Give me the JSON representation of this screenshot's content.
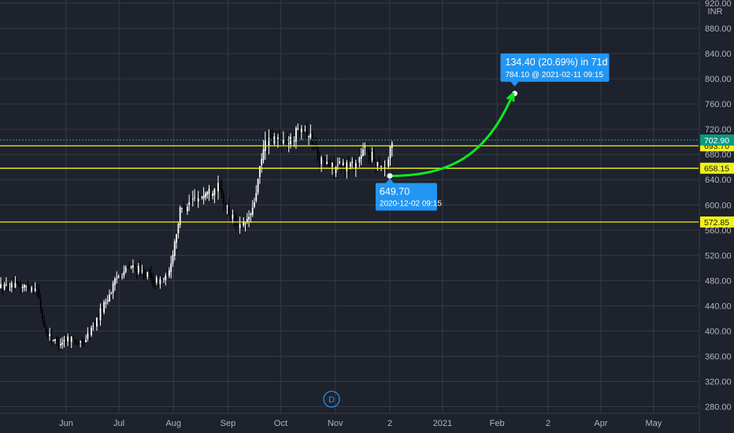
{
  "chart_data": {
    "type": "candlestick",
    "currency": "INR",
    "last_price_label": "702.90",
    "y_ticks": [
      920,
      880,
      840,
      800,
      760,
      720,
      680,
      640,
      600,
      560,
      520,
      480,
      440,
      400,
      360,
      320,
      280
    ],
    "y_tick_labels": [
      "920.00",
      "880.00",
      "840.00",
      "800.00",
      "760.00",
      "720.00",
      "680.00",
      "640.00",
      "600.00",
      "560.00",
      "520.00",
      "480.00",
      "440.00",
      "400.00",
      "360.00",
      "320.00",
      "280.00"
    ],
    "x_ticks": [
      {
        "label": "Jun",
        "date": "2020-06-01"
      },
      {
        "label": "Jul",
        "date": "2020-07-01"
      },
      {
        "label": "Aug",
        "date": "2020-08-01"
      },
      {
        "label": "Sep",
        "date": "2020-09-01"
      },
      {
        "label": "Oct",
        "date": "2020-10-01"
      },
      {
        "label": "Nov",
        "date": "2020-11-01"
      },
      {
        "label": "2",
        "date": "2020-12-02"
      },
      {
        "label": "2021",
        "date": "2021-01-01"
      },
      {
        "label": "Feb",
        "date": "2021-02-01"
      },
      {
        "label": "2",
        "date": "2021-03-02"
      },
      {
        "label": "Apr",
        "date": "2021-04-01"
      },
      {
        "label": "May",
        "date": "2021-05-01"
      }
    ],
    "horizontal_levels": [
      {
        "value": 693.7,
        "label": "693.70"
      },
      {
        "value": 658.15,
        "label": "658.15"
      },
      {
        "value": 572.85,
        "label": "572.85"
      }
    ],
    "price_path": [
      {
        "date": "2020-05-15",
        "close": 470
      },
      {
        "date": "2020-05-20",
        "close": 400
      },
      {
        "date": "2020-05-27",
        "close": 380
      },
      {
        "date": "2020-06-03",
        "close": 390
      },
      {
        "date": "2020-06-10",
        "close": 378
      },
      {
        "date": "2020-06-17",
        "close": 410
      },
      {
        "date": "2020-06-24",
        "close": 450
      },
      {
        "date": "2020-07-01",
        "close": 490
      },
      {
        "date": "2020-07-08",
        "close": 502
      },
      {
        "date": "2020-07-15",
        "close": 492
      },
      {
        "date": "2020-07-22",
        "close": 478
      },
      {
        "date": "2020-07-29",
        "close": 485
      },
      {
        "date": "2020-08-05",
        "close": 592
      },
      {
        "date": "2020-08-12",
        "close": 608
      },
      {
        "date": "2020-08-19",
        "close": 618
      },
      {
        "date": "2020-08-26",
        "close": 630
      },
      {
        "date": "2020-09-02",
        "close": 585
      },
      {
        "date": "2020-09-09",
        "close": 562
      },
      {
        "date": "2020-09-15",
        "close": 590
      },
      {
        "date": "2020-09-22",
        "close": 700
      },
      {
        "date": "2020-09-29",
        "close": 705
      },
      {
        "date": "2020-10-06",
        "close": 698
      },
      {
        "date": "2020-10-13",
        "close": 730
      },
      {
        "date": "2020-10-19",
        "close": 702
      },
      {
        "date": "2020-10-23",
        "close": 672
      },
      {
        "date": "2020-10-30",
        "close": 660
      },
      {
        "date": "2020-11-06",
        "close": 662
      },
      {
        "date": "2020-11-13",
        "close": 665
      },
      {
        "date": "2020-11-18",
        "close": 690
      },
      {
        "date": "2020-11-24",
        "close": 668
      },
      {
        "date": "2020-11-30",
        "close": 660
      },
      {
        "date": "2020-12-04",
        "close": 705
      }
    ],
    "projection": {
      "start": {
        "date": "2020-12-02",
        "value": 649.7,
        "price_label": "649.70",
        "time_label": "2020-12-02 09:15"
      },
      "end": {
        "date": "2021-02-11",
        "value": 784.1,
        "detail_label": "784.10 @ 2021-02-11  09:15"
      },
      "change_label": "134.40 (20.69%) in 71d"
    },
    "event_marker": "D"
  },
  "colors": {
    "background": "#1e222d",
    "grid": "#363a45",
    "candle_up": "#ffffff",
    "candle_down": "#000000",
    "level_line": "#f2f21a",
    "projection_arrow": "#0eea1f",
    "callout": "#2196f3",
    "axis_text": "#b2b5be",
    "last_price_badge": "#089981"
  }
}
